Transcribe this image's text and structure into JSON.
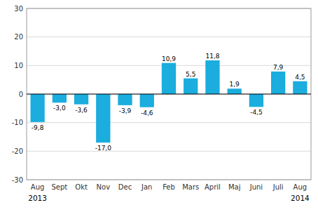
{
  "chart_data": {
    "type": "bar",
    "categories": [
      "Aug",
      "Sept",
      "Okt",
      "Nov",
      "Dec",
      "Jan",
      "Feb",
      "Mars",
      "April",
      "Maj",
      "Juni",
      "Juli",
      "Aug"
    ],
    "values": [
      -9.8,
      -3.0,
      -3.6,
      -17.0,
      -3.9,
      -4.6,
      10.9,
      5.5,
      11.8,
      1.9,
      -4.5,
      7.9,
      4.5
    ],
    "value_labels": [
      "-9,8",
      "-3,0",
      "-3,6",
      "-17,0",
      "-3,9",
      "-4,6",
      "10,9",
      "5,5",
      "11,8",
      "1,9",
      "-4,5",
      "7,9",
      "4,5"
    ],
    "data_labels": true,
    "color": "#1aadde",
    "ylim": [
      -30,
      30
    ],
    "yticks": [
      -30,
      -20,
      -10,
      0,
      10,
      20,
      30
    ],
    "grid": true,
    "annotations": [
      {
        "text": "2013",
        "x": 0
      },
      {
        "text": "2014",
        "x": 12
      }
    ]
  }
}
